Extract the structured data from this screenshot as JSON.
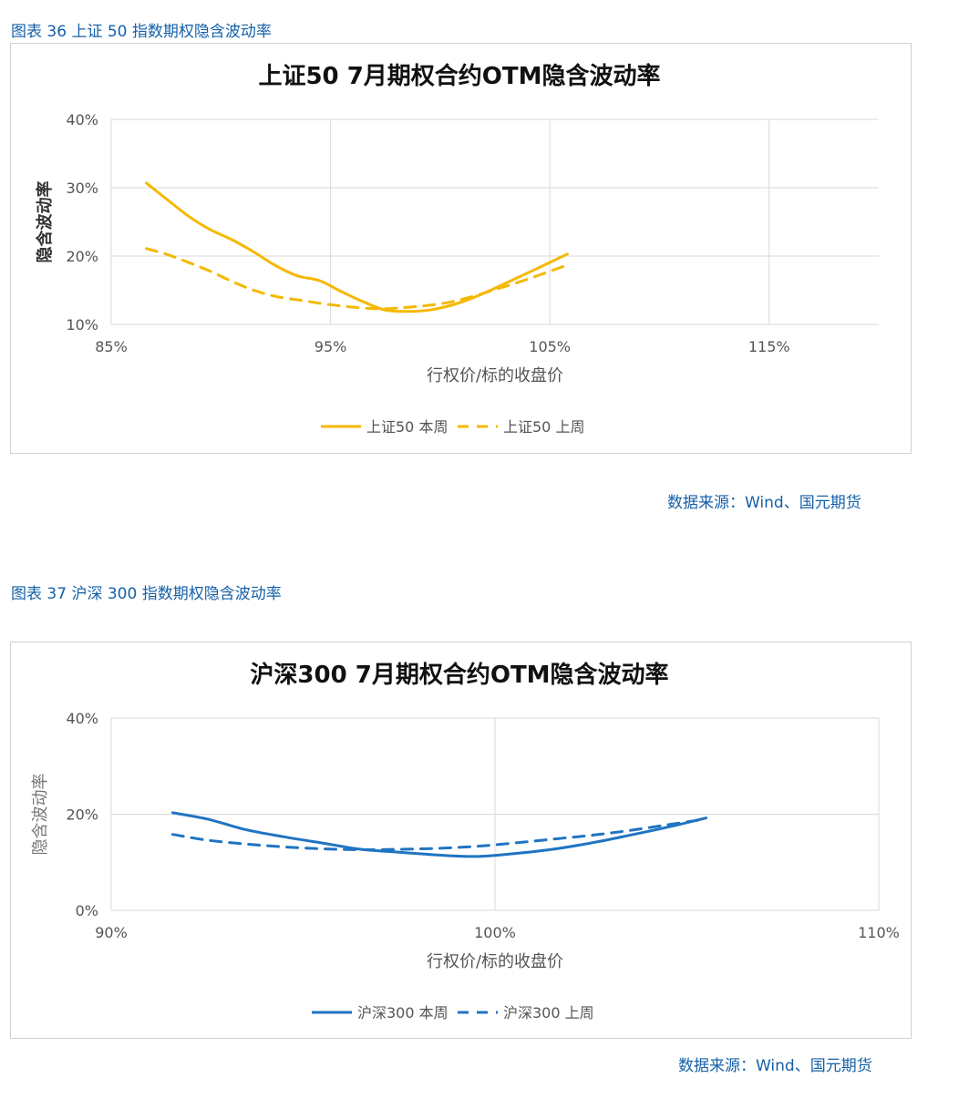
{
  "figure1": {
    "caption": "图表 36 上证 50 指数期权隐含波动率",
    "source": "数据来源：Wind、国元期货"
  },
  "figure2": {
    "caption": "图表 37 沪深 300 指数期权隐含波动率",
    "source": "数据来源：Wind、国元期货"
  },
  "colors": {
    "chart1": "#f5b800",
    "chart2": "#1f74c2",
    "caption": "#1560a8"
  },
  "chart_data": [
    {
      "type": "line",
      "title": "上证50  7月期权合约OTM隐含波动率",
      "xlabel": "行权价/标的收盘价",
      "ylabel": "隐含波动率",
      "xlim": [
        0.85,
        1.2
      ],
      "ylim": [
        0.1,
        0.4
      ],
      "x_ticks": [
        0.85,
        0.95,
        1.05,
        1.15
      ],
      "x_tick_labels": [
        "85%",
        "95%",
        "105%",
        "115%"
      ],
      "y_ticks": [
        0.1,
        0.2,
        0.3,
        0.4
      ],
      "y_tick_labels": [
        "10%",
        "20%",
        "30%",
        "40%"
      ],
      "grid": true,
      "legend_position": "bottom",
      "series": [
        {
          "name": "上证50 本周",
          "dash": "solid",
          "x": [
            0.866,
            0.875,
            0.885,
            0.895,
            0.905,
            0.915,
            0.925,
            0.935,
            0.945,
            0.955,
            0.965,
            0.975,
            0.985,
            0.995,
            1.005,
            1.015,
            1.025,
            1.035,
            1.045,
            1.058
          ],
          "y": [
            0.307,
            0.284,
            0.259,
            0.239,
            0.224,
            0.206,
            0.186,
            0.171,
            0.164,
            0.148,
            0.133,
            0.121,
            0.119,
            0.121,
            0.128,
            0.139,
            0.153,
            0.168,
            0.183,
            0.203
          ]
        },
        {
          "name": "上证50 上周",
          "dash": "dashed",
          "x": [
            0.866,
            0.875,
            0.885,
            0.895,
            0.905,
            0.915,
            0.925,
            0.935,
            0.945,
            0.955,
            0.965,
            0.975,
            0.985,
            0.995,
            1.005,
            1.015,
            1.025,
            1.035,
            1.045,
            1.058
          ],
          "y": [
            0.211,
            0.203,
            0.191,
            0.178,
            0.163,
            0.15,
            0.141,
            0.136,
            0.131,
            0.127,
            0.124,
            0.123,
            0.125,
            0.128,
            0.133,
            0.141,
            0.151,
            0.161,
            0.172,
            0.187
          ]
        }
      ]
    },
    {
      "type": "line",
      "title": "沪深300  7月期权合约OTM隐含波动率",
      "xlabel": "行权价/标的收盘价",
      "ylabel": "隐含波动率",
      "xlim": [
        0.9,
        1.1
      ],
      "ylim": [
        0.0,
        0.4
      ],
      "x_ticks": [
        0.9,
        1.0,
        1.1
      ],
      "x_tick_labels": [
        "90%",
        "100%",
        "110%"
      ],
      "y_ticks": [
        0.0,
        0.2,
        0.4
      ],
      "y_tick_labels": [
        "0%",
        "20%",
        "40%"
      ],
      "grid": true,
      "legend_position": "bottom",
      "series": [
        {
          "name": "沪深300 本周",
          "dash": "solid",
          "x": [
            0.916,
            0.925,
            0.935,
            0.945,
            0.955,
            0.965,
            0.975,
            0.985,
            0.995,
            1.005,
            1.015,
            1.025,
            1.035,
            1.045,
            1.055
          ],
          "y": [
            0.203,
            0.19,
            0.168,
            0.153,
            0.14,
            0.127,
            0.121,
            0.115,
            0.112,
            0.118,
            0.127,
            0.14,
            0.156,
            0.173,
            0.192
          ]
        },
        {
          "name": "沪深300 上周",
          "dash": "dashed",
          "x": [
            0.916,
            0.925,
            0.935,
            0.945,
            0.955,
            0.965,
            0.975,
            0.985,
            0.995,
            1.005,
            1.015,
            1.025,
            1.035,
            1.045,
            1.055
          ],
          "y": [
            0.158,
            0.146,
            0.138,
            0.132,
            0.128,
            0.126,
            0.127,
            0.129,
            0.133,
            0.14,
            0.148,
            0.156,
            0.166,
            0.178,
            0.19
          ]
        }
      ]
    }
  ]
}
